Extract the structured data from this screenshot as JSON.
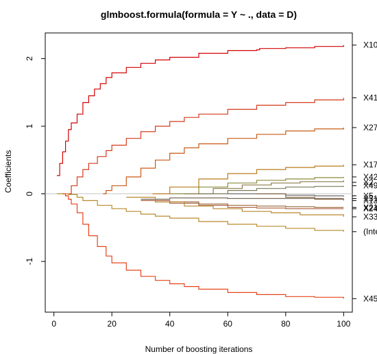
{
  "chart_data": {
    "type": "line",
    "title": "glmboost.formula(formula = Y ~ ., data = D)",
    "xlabel": "Number of boosting iterations",
    "ylabel": "Coefficients",
    "xlim": [
      -3,
      103
    ],
    "ylim": [
      -1.75,
      2.38
    ],
    "xticks": [
      "0",
      "20",
      "40",
      "60",
      "80",
      "100"
    ],
    "yticks": [
      "-1",
      "0",
      "1",
      "2"
    ],
    "grid": false,
    "legend": "none",
    "zero_line_color": "#c8c8c8",
    "series": [
      {
        "name": "X10",
        "color": "#d40000",
        "x": [
          1,
          2,
          3,
          4,
          5,
          6,
          8,
          10,
          12,
          14,
          16,
          18,
          20,
          25,
          30,
          35,
          40,
          50,
          60,
          70,
          71,
          80,
          90,
          100
        ],
        "y": [
          0.27,
          0.45,
          0.62,
          0.78,
          0.95,
          1.05,
          1.18,
          1.35,
          1.45,
          1.55,
          1.63,
          1.72,
          1.79,
          1.87,
          1.93,
          1.98,
          2.02,
          2.08,
          2.12,
          2.13,
          2.15,
          2.16,
          2.18,
          2.2
        ]
      },
      {
        "name": "X41",
        "color": "#d43a1a",
        "x": [
          5,
          6,
          8,
          10,
          12,
          15,
          18,
          20,
          25,
          30,
          35,
          40,
          45,
          50,
          60,
          70,
          80,
          90,
          100
        ],
        "y": [
          0.0,
          0.12,
          0.25,
          0.36,
          0.45,
          0.55,
          0.64,
          0.72,
          0.82,
          0.92,
          1.0,
          1.07,
          1.13,
          1.18,
          1.25,
          1.31,
          1.35,
          1.39,
          1.42
        ]
      },
      {
        "name": "X27",
        "color": "#c85a14",
        "x": [
          17,
          18,
          20,
          25,
          30,
          35,
          40,
          45,
          50,
          60,
          70,
          80,
          90,
          100
        ],
        "y": [
          0.0,
          0.05,
          0.12,
          0.25,
          0.38,
          0.5,
          0.6,
          0.68,
          0.74,
          0.82,
          0.88,
          0.93,
          0.96,
          0.98
        ]
      },
      {
        "name": "X17",
        "color": "#b87a1a",
        "x": [
          34,
          40,
          50,
          60,
          70,
          80,
          90,
          100
        ],
        "y": [
          0.0,
          0.1,
          0.22,
          0.3,
          0.36,
          0.39,
          0.41,
          0.43
        ]
      },
      {
        "name": "X42",
        "color": "#8a8a3a",
        "x": [
          40,
          50,
          60,
          70,
          80,
          90,
          100
        ],
        "y": [
          0.0,
          0.1,
          0.16,
          0.2,
          0.22,
          0.24,
          0.25
        ]
      },
      {
        "name": "X2",
        "color": "#8a7a4a",
        "x": [
          45,
          55,
          65,
          75,
          85,
          100
        ],
        "y": [
          0.0,
          0.08,
          0.13,
          0.16,
          0.18,
          0.2
        ]
      },
      {
        "name": "X49",
        "color": "#7a7a5a",
        "x": [
          50,
          60,
          70,
          80,
          90,
          100
        ],
        "y": [
          0.0,
          0.05,
          0.08,
          0.1,
          0.11,
          0.12
        ]
      },
      {
        "name": "X5",
        "color": "#6a6a6a",
        "x": [
          60,
          70,
          80,
          90,
          100
        ],
        "y": [
          0.0,
          0.0,
          -0.02,
          -0.03,
          -0.04
        ]
      },
      {
        "name": "X31",
        "color": "#7a6a5a",
        "x": [
          30,
          40,
          50,
          60,
          70,
          80,
          90,
          100
        ],
        "y": [
          -0.08,
          -0.06,
          -0.06,
          -0.07,
          -0.07,
          -0.07,
          -0.07,
          -0.07
        ]
      },
      {
        "name": "X13",
        "color": "#8a6a4a",
        "x": [
          70,
          80,
          90,
          100
        ],
        "y": [
          0.0,
          -0.05,
          -0.08,
          -0.1
        ]
      },
      {
        "name": "X21",
        "color": "#9a6a3a",
        "x": [
          40,
          50,
          60,
          70,
          80,
          90,
          100
        ],
        "y": [
          -0.12,
          -0.15,
          -0.17,
          -0.18,
          -0.19,
          -0.2,
          -0.2
        ]
      },
      {
        "name": "X24",
        "color": "#a85a3a",
        "x": [
          30,
          40,
          50,
          60,
          70,
          80,
          90,
          100
        ],
        "y": [
          -0.1,
          -0.14,
          -0.17,
          -0.2,
          -0.21,
          -0.22,
          -0.22,
          -0.22
        ]
      },
      {
        "name": "X33",
        "color": "#b8862a",
        "x": [
          25,
          35,
          45,
          55,
          65,
          75,
          85,
          100
        ],
        "y": [
          -0.05,
          -0.12,
          -0.18,
          -0.22,
          -0.26,
          -0.28,
          -0.31,
          -0.34
        ]
      },
      {
        "name": "(Intercept)",
        "color": "#b88a2a",
        "x": [
          1,
          3,
          5,
          8,
          10,
          15,
          20,
          25,
          30,
          35,
          40,
          50,
          60,
          70,
          80,
          90,
          100
        ],
        "y": [
          0.0,
          0.0,
          -0.01,
          -0.05,
          -0.1,
          -0.17,
          -0.22,
          -0.26,
          -0.3,
          -0.33,
          -0.36,
          -0.41,
          -0.45,
          -0.48,
          -0.51,
          -0.54,
          -0.56
        ]
      },
      {
        "name": "X45",
        "color": "#e4441a",
        "x": [
          3,
          4,
          5,
          6,
          8,
          10,
          12,
          15,
          18,
          20,
          25,
          30,
          35,
          40,
          45,
          50,
          60,
          70,
          80,
          90,
          100
        ],
        "y": [
          0.0,
          -0.03,
          -0.08,
          -0.15,
          -0.28,
          -0.45,
          -0.62,
          -0.78,
          -0.92,
          -1.02,
          -1.13,
          -1.22,
          -1.28,
          -1.33,
          -1.37,
          -1.41,
          -1.46,
          -1.49,
          -1.52,
          -1.53,
          -1.55
        ]
      }
    ],
    "right_labels": [
      {
        "text": "X10",
        "y": 2.2
      },
      {
        "text": "X41",
        "y": 1.42
      },
      {
        "text": "X27",
        "y": 0.98
      },
      {
        "text": "X17",
        "y": 0.43
      },
      {
        "text": "X42",
        "y": 0.25
      },
      {
        "text": "X2",
        "y": 0.17
      },
      {
        "text": "X49",
        "y": 0.12
      },
      {
        "text": "X5",
        "y": -0.03
      },
      {
        "text": "X31",
        "y": -0.07
      },
      {
        "text": "X13",
        "y": -0.1
      },
      {
        "text": "X21",
        "y": -0.2
      },
      {
        "text": "X24",
        "y": -0.22
      },
      {
        "text": "X33",
        "y": -0.34
      },
      {
        "text": "(Intercept)",
        "y": -0.56
      },
      {
        "text": "X45",
        "y": -1.55
      }
    ]
  }
}
